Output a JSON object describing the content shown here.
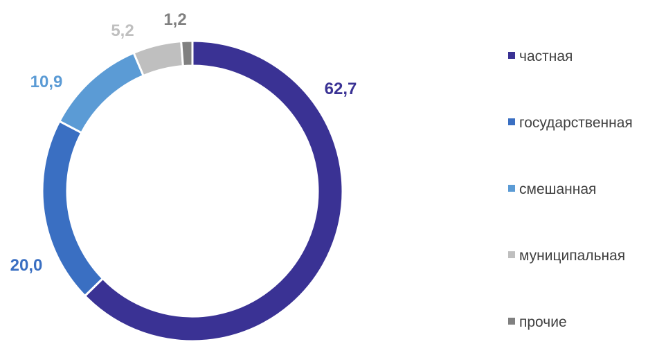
{
  "chart_data": {
    "type": "pie",
    "variant": "donut",
    "categories": [
      "частная",
      "государственная",
      "смешанная",
      "муниципальная",
      "прочие"
    ],
    "values": [
      62.7,
      20.0,
      10.9,
      5.2,
      1.2
    ],
    "value_labels": [
      "62,7",
      "20,0",
      "10,9",
      "5,2",
      "1,2"
    ],
    "colors": [
      "#3a3294",
      "#3a6fc2",
      "#5b9bd5",
      "#bfbfbf",
      "#808080"
    ],
    "legend_position": "right",
    "title": ""
  }
}
